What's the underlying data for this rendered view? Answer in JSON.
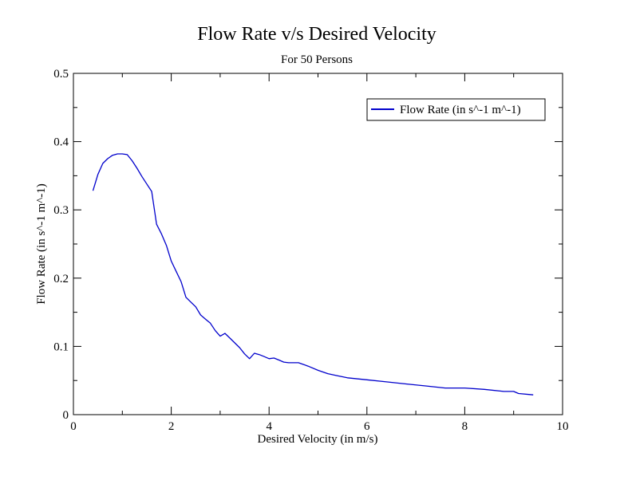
{
  "chart_data": {
    "type": "line",
    "title": "Flow Rate v/s Desired Velocity",
    "subtitle": "For 50 Persons",
    "xlabel": "Desired Velocity (in m/s)",
    "ylabel": "Flow Rate (in s^-1 m^-1)",
    "xlim": [
      0,
      10
    ],
    "ylim": [
      0,
      0.5
    ],
    "x_ticks": [
      "0",
      "2",
      "4",
      "6",
      "8",
      "10"
    ],
    "y_ticks": [
      "0",
      "0.1",
      "0.2",
      "0.3",
      "0.4",
      "0.5"
    ],
    "grid": false,
    "legend_position": "top-right",
    "series": [
      {
        "name": "Flow Rate (in s^-1 m^-1)",
        "color": "#0000cc",
        "x": [
          0.4,
          0.5,
          0.6,
          0.7,
          0.8,
          0.9,
          1.0,
          1.1,
          1.2,
          1.3,
          1.4,
          1.5,
          1.6,
          1.7,
          1.8,
          1.9,
          2.0,
          2.1,
          2.2,
          2.3,
          2.4,
          2.5,
          2.6,
          2.7,
          2.8,
          2.9,
          3.0,
          3.1,
          3.2,
          3.3,
          3.4,
          3.5,
          3.6,
          3.7,
          3.8,
          3.9,
          4.0,
          4.1,
          4.2,
          4.3,
          4.4,
          4.5,
          4.6,
          4.8,
          5.0,
          5.2,
          5.4,
          5.6,
          6.0,
          6.4,
          6.8,
          7.2,
          7.6,
          8.0,
          8.4,
          8.8,
          9.0,
          9.1,
          9.4
        ],
        "y": [
          0.328,
          0.352,
          0.368,
          0.375,
          0.38,
          0.382,
          0.382,
          0.381,
          0.372,
          0.361,
          0.349,
          0.338,
          0.327,
          0.279,
          0.265,
          0.248,
          0.225,
          0.21,
          0.195,
          0.172,
          0.165,
          0.158,
          0.146,
          0.14,
          0.134,
          0.123,
          0.115,
          0.119,
          0.112,
          0.105,
          0.098,
          0.089,
          0.082,
          0.09,
          0.088,
          0.085,
          0.082,
          0.083,
          0.08,
          0.077,
          0.076,
          0.076,
          0.076,
          0.071,
          0.065,
          0.06,
          0.057,
          0.054,
          0.051,
          0.048,
          0.045,
          0.042,
          0.039,
          0.039,
          0.037,
          0.034,
          0.034,
          0.031,
          0.029
        ]
      }
    ]
  }
}
